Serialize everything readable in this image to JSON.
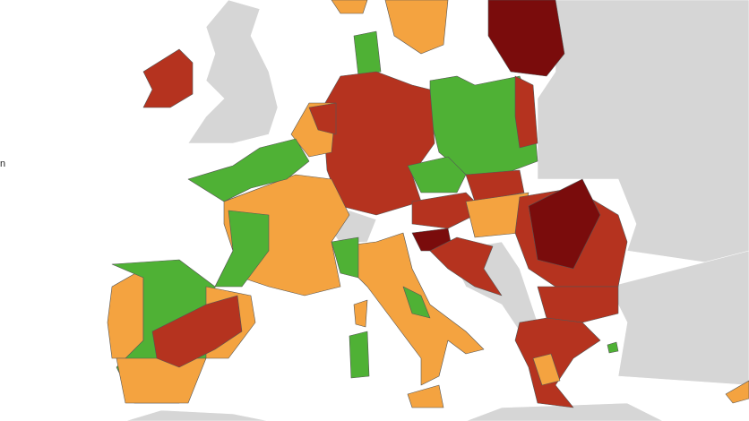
{
  "edge_text": "n"
}
